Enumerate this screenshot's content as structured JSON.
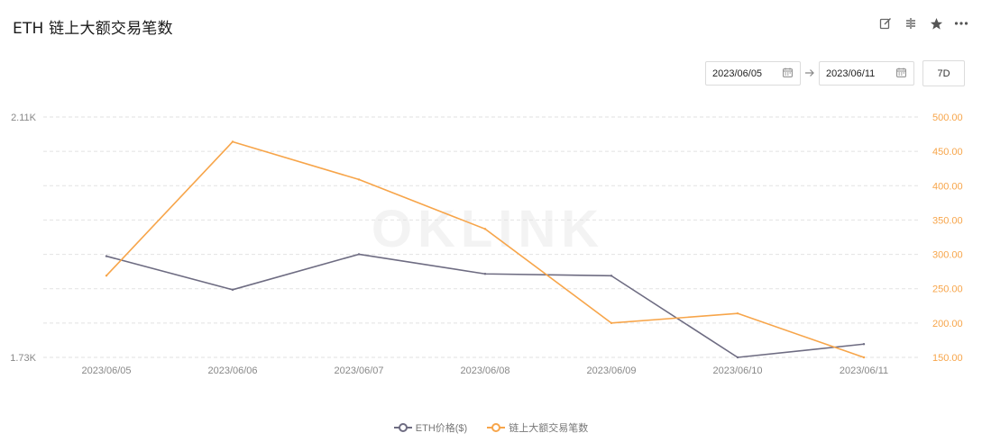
{
  "header": {
    "title": "ETH 链上大额交易笔数",
    "tools": [
      {
        "icon": "edit-icon"
      },
      {
        "icon": "compare-icon"
      },
      {
        "icon": "star-icon"
      },
      {
        "icon": "more-icon"
      }
    ]
  },
  "controls": {
    "start_date": "2023/06/05",
    "end_date": "2023/06/11",
    "range_label": "7D"
  },
  "watermark": "OKLINK",
  "colors": {
    "price": "#6e6c82",
    "count": "#f7a54a",
    "grid": "#e2e2e2",
    "left_axis_text": "#888888",
    "right_axis_text": "#f7a54a"
  },
  "chart_data": {
    "type": "line",
    "categories": [
      "2023/06/05",
      "2023/06/06",
      "2023/06/07",
      "2023/06/08",
      "2023/06/09",
      "2023/06/10",
      "2023/06/11"
    ],
    "series": [
      {
        "name": "ETH价格($)",
        "axis": "left",
        "values": [
          1.89,
          1.837,
          1.893,
          1.862,
          1.859,
          1.73,
          1.751
        ]
      },
      {
        "name": "链上大额交易笔数",
        "axis": "right",
        "values": [
          269,
          464,
          409,
          337,
          200,
          214,
          150
        ]
      }
    ],
    "left_axis": {
      "ticks": [
        "2.11K",
        "1.73K"
      ],
      "ylim": [
        1.73,
        2.11
      ]
    },
    "right_axis": {
      "ticks": [
        "500.00",
        "450.00",
        "400.00",
        "350.00",
        "300.00",
        "250.00",
        "200.00",
        "150.00"
      ],
      "ylim": [
        150,
        500
      ]
    },
    "grid": true,
    "legend_position": "bottom"
  }
}
